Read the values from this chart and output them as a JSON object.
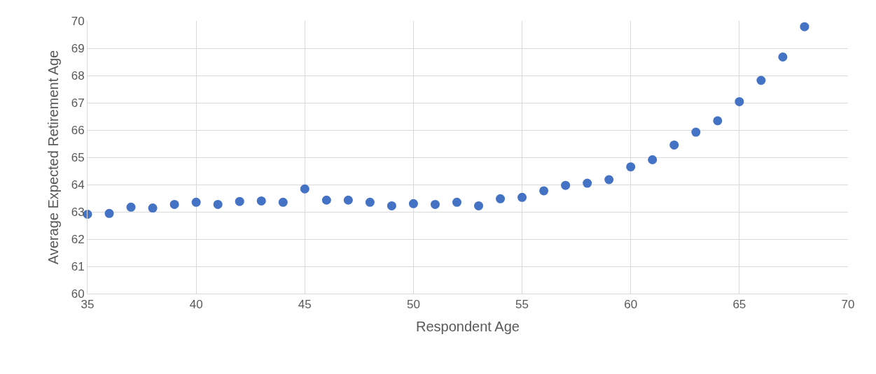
{
  "chart_data": {
    "type": "scatter",
    "xlabel": "Respondent Age",
    "ylabel": "Average Expected Retirement Age",
    "x": [
      35,
      36,
      37,
      38,
      39,
      40,
      41,
      42,
      43,
      44,
      45,
      46,
      47,
      48,
      49,
      50,
      51,
      52,
      53,
      54,
      55,
      56,
      57,
      58,
      59,
      60,
      61,
      62,
      63,
      64,
      65,
      66,
      67,
      68
    ],
    "series": [
      {
        "color": "#4472c4",
        "values": [
          62.91,
          62.94,
          63.17,
          63.14,
          63.27,
          63.35,
          63.27,
          63.38,
          63.4,
          63.35,
          63.84,
          63.43,
          63.43,
          63.35,
          63.22,
          63.3,
          63.27,
          63.35,
          63.22,
          63.48,
          63.53,
          63.77,
          63.97,
          64.05,
          64.18,
          64.65,
          64.91,
          65.45,
          65.92,
          66.34,
          67.04,
          67.82,
          68.68,
          69.79
        ]
      }
    ],
    "xlim": [
      35,
      70
    ],
    "xticks": [
      35,
      40,
      45,
      50,
      55,
      60,
      65,
      70
    ],
    "ylim": [
      60,
      70
    ],
    "yticks": [
      60,
      61,
      62,
      63,
      64,
      65,
      66,
      67,
      68,
      69,
      70
    ],
    "grid": true,
    "marker": "circle",
    "legend": false
  }
}
